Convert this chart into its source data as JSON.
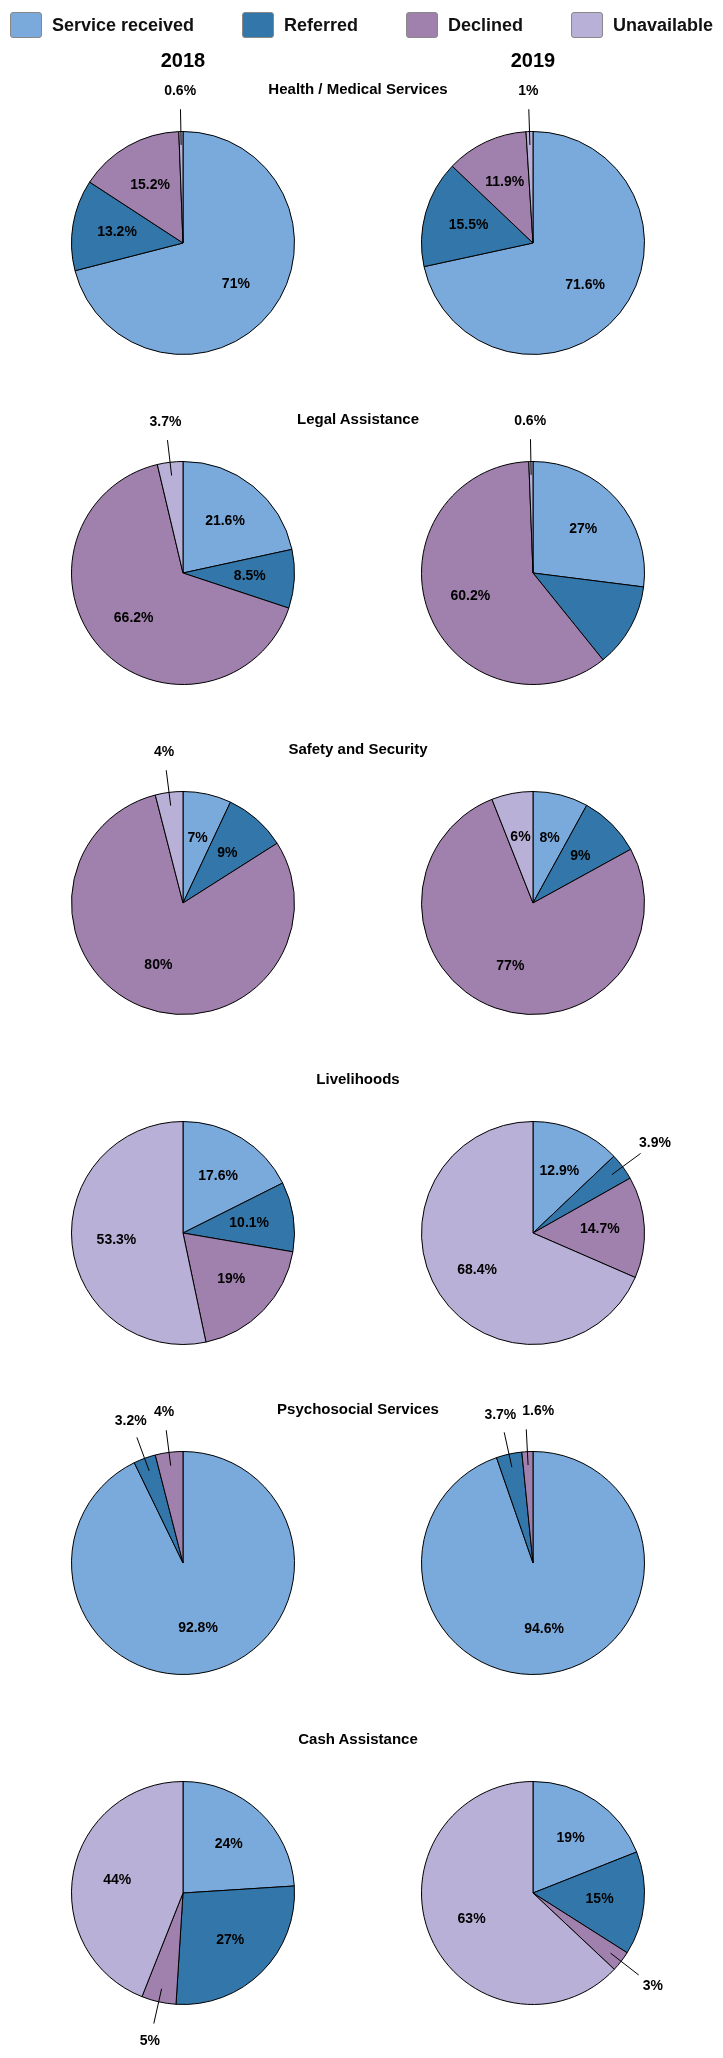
{
  "chart_data": [
    {
      "type": "pie",
      "title": "Health / Medical Services",
      "legend": "top",
      "categories": [
        "Service received",
        "Referred",
        "Declined",
        "Unavailable"
      ],
      "colors": [
        "#7aaadb",
        "#3377aa",
        "#a080ac",
        "#b8b0d6"
      ],
      "series": [
        {
          "name": "2018",
          "values": [
            71,
            13.2,
            15.2,
            0.6
          ],
          "value_labels": [
            "71%",
            "13.2%",
            "15.2%",
            "0.6%"
          ]
        },
        {
          "name": "2019",
          "values": [
            71.6,
            15.5,
            11.9,
            1
          ],
          "value_labels": [
            "71.6%",
            "15.5%",
            "11.9%",
            "1%"
          ]
        }
      ]
    },
    {
      "type": "pie",
      "title": "Legal Assistance",
      "colors": [
        "#7aaadb",
        "#3377aa",
        "#a080ac",
        "#b8b0d6"
      ],
      "series": [
        {
          "values": [
            21.6,
            8.5,
            66.2,
            3.7
          ],
          "value_labels": [
            "21.6%",
            "8.5%",
            "66.2%",
            "3.7%"
          ]
        },
        {
          "values": [
            27,
            12.2,
            60.2,
            0.6
          ],
          "value_labels": [
            "27%",
            null,
            "60.2%",
            "0.6%"
          ]
        }
      ]
    },
    {
      "type": "pie",
      "title": "Safety and Security",
      "colors": [
        "#7aaadb",
        "#3377aa",
        "#a080ac",
        "#b8b0d6"
      ],
      "series": [
        {
          "values": [
            7,
            9,
            80,
            4
          ],
          "value_labels": [
            "7%",
            "9%",
            "80%",
            "4%"
          ]
        },
        {
          "values": [
            8,
            9,
            77,
            6
          ],
          "value_labels": [
            "8%",
            "9%",
            "77%",
            "6%"
          ]
        }
      ]
    },
    {
      "type": "pie",
      "title": "Livelihoods",
      "colors": [
        "#7aaadb",
        "#3377aa",
        "#a080ac",
        "#b8b0d6"
      ],
      "series": [
        {
          "values": [
            17.6,
            10.1,
            19,
            53.3
          ],
          "value_labels": [
            "17.6%",
            "10.1%",
            "19%",
            "53.3%"
          ]
        },
        {
          "values": [
            12.9,
            3.9,
            14.7,
            68.4
          ],
          "value_labels": [
            "12.9%",
            "3.9%",
            "14.7%",
            "68.4%"
          ]
        }
      ]
    },
    {
      "type": "pie",
      "title": "Psychosocial Services",
      "colors": [
        "#7aaadb",
        "#3377aa",
        "#a080ac",
        "#b8b0d6"
      ],
      "series": [
        {
          "values": [
            92.8,
            3.2,
            4,
            0
          ],
          "value_labels": [
            "92.8%",
            "3.2%",
            "4%",
            null
          ]
        },
        {
          "values": [
            94.6,
            3.7,
            1.6,
            0
          ],
          "value_labels": [
            "94.6%",
            "3.7%",
            "1.6%",
            null
          ]
        }
      ]
    },
    {
      "type": "pie",
      "title": "Cash Assistance",
      "colors": [
        "#7aaadb",
        "#3377aa",
        "#a080ac",
        "#b8b0d6"
      ],
      "series": [
        {
          "values": [
            24,
            27,
            5,
            44
          ],
          "value_labels": [
            "24%",
            "27%",
            "5%",
            "44%"
          ]
        },
        {
          "values": [
            19,
            15,
            3,
            63
          ],
          "value_labels": [
            "19%",
            "15%",
            "3%",
            "63%"
          ]
        }
      ]
    }
  ]
}
